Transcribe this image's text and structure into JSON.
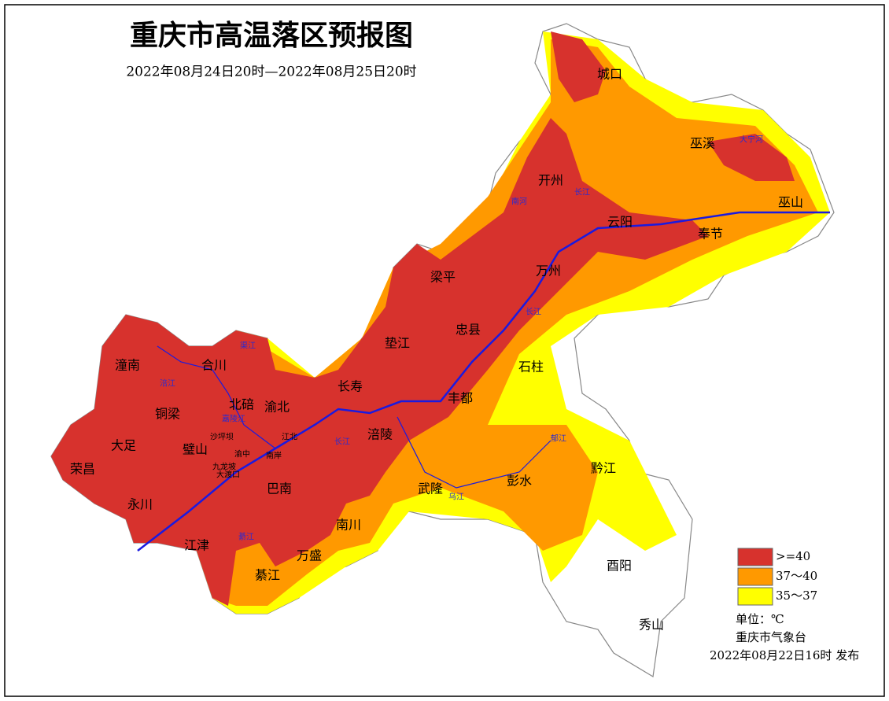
{
  "header": {
    "title": "重庆市高温落区预报图",
    "subtitle": "2022年08月24日20时—2022年08月25日20时"
  },
  "districts": [
    "城口",
    "巫溪",
    "巫山",
    "开州",
    "云阳",
    "奉节",
    "万州",
    "梁平",
    "忠县",
    "垫江",
    "石柱",
    "长寿",
    "丰都",
    "潼南",
    "合川",
    "北碚",
    "渝北",
    "铜梁",
    "大足",
    "璧山",
    "荣昌",
    "涪陵",
    "武隆",
    "彭水",
    "黔江",
    "巴南",
    "永川",
    "南川",
    "江津",
    "万盛",
    "綦江",
    "酉阳",
    "秀山"
  ],
  "minor_districts": [
    "沙坪坝",
    "九龙坡",
    "大渡口",
    "渝中",
    "江北",
    "南岸"
  ],
  "rivers": [
    "大宁河",
    "长江",
    "南河",
    "长江",
    "长江",
    "乌江",
    "涪江",
    "渠江",
    "嘉陵江",
    "綦江",
    "郁江"
  ],
  "legend": [
    {
      "label": ">=40",
      "color": "#d7322d"
    },
    {
      "label": "37～40",
      "color": "#ff9900"
    },
    {
      "label": "35～37",
      "color": "#ffff00"
    }
  ],
  "footer": {
    "unit": "单位：℃",
    "issuer": "重庆市气象台",
    "issued": "2022年08月22日16时  发布"
  }
}
